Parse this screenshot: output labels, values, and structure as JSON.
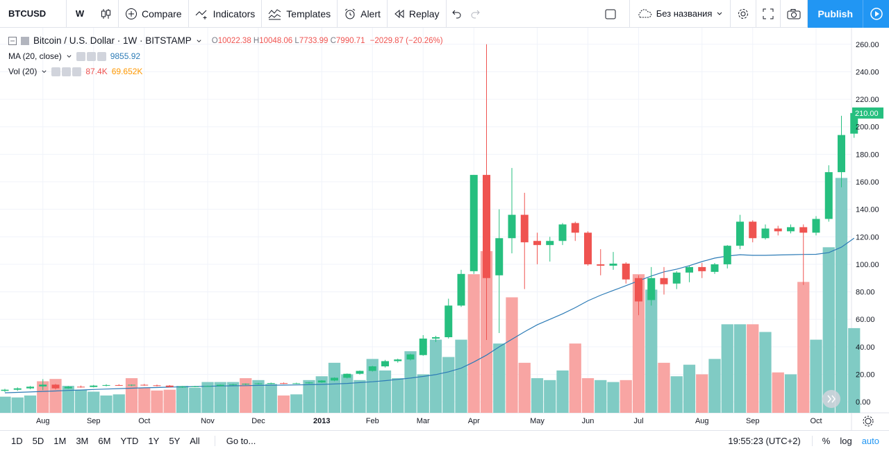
{
  "toolbar": {
    "symbol": "BTCUSD",
    "interval": "W",
    "compare": "Compare",
    "indicators": "Indicators",
    "templates": "Templates",
    "alert": "Alert",
    "replay": "Replay",
    "layout_name": "Без названия",
    "publish": "Publish"
  },
  "legend": {
    "title": "Bitcoin / U.S. Dollar · 1W · BITSTAMP",
    "o_key": "O",
    "o_val": "10022.38",
    "h_key": "H",
    "h_val": "10048.06",
    "l_key": "L",
    "l_val": "7733.99",
    "c_key": "C",
    "c_val": "7990.71",
    "change": "−2029.87 (−20.26%)",
    "ma_label": "MA (20, close)",
    "ma_value": "9855.92",
    "vol_label": "Vol (20)",
    "vol_value1": "87.4K",
    "vol_value2": "69.652K"
  },
  "bottombar": {
    "ranges": [
      "1D",
      "5D",
      "1M",
      "3M",
      "6M",
      "YTD",
      "1Y",
      "5Y",
      "All"
    ],
    "goto": "Go to...",
    "clock": "19:55:23 (UTC+2)",
    "percent": "%",
    "log": "log",
    "auto": "auto"
  },
  "colors": {
    "up": "#26a69a",
    "up_candle": "#26bf7f",
    "down": "#ef5350",
    "ma": "#2c7bb6",
    "vol_up": "#80cbc4",
    "vol_down": "#f8a5a3",
    "accent": "#2196f3"
  },
  "chart_data": {
    "type": "candlestick",
    "yticks": [
      0,
      20,
      40,
      60,
      80,
      100,
      120,
      140,
      160,
      180,
      200,
      220,
      240,
      260
    ],
    "ylim": [
      -8,
      272
    ],
    "last_price_label": "210.00",
    "last_price": 210,
    "x_labels": [
      {
        "label": "Aug",
        "week": 3
      },
      {
        "label": "Sep",
        "week": 7
      },
      {
        "label": "Oct",
        "week": 11
      },
      {
        "label": "Nov",
        "week": 16
      },
      {
        "label": "Dec",
        "week": 20
      },
      {
        "label": "2013",
        "week": 25
      },
      {
        "label": "Feb",
        "week": 29
      },
      {
        "label": "Mar",
        "week": 33
      },
      {
        "label": "Apr",
        "week": 37
      },
      {
        "label": "May",
        "week": 42
      },
      {
        "label": "Jun",
        "week": 46
      },
      {
        "label": "Jul",
        "week": 50
      },
      {
        "label": "Aug",
        "week": 55
      },
      {
        "label": "Sep",
        "week": 59
      },
      {
        "label": "Oct",
        "week": 64
      }
    ],
    "candles": [
      {
        "o": 8.0,
        "h": 9.5,
        "l": 7.2,
        "c": 8.8
      },
      {
        "o": 8.8,
        "h": 10.5,
        "l": 8.0,
        "c": 9.8
      },
      {
        "o": 9.8,
        "h": 11.5,
        "l": 9.2,
        "c": 11.0
      },
      {
        "o": 11.2,
        "h": 16.5,
        "l": 8.5,
        "c": 12.5
      },
      {
        "o": 12.5,
        "h": 13.0,
        "l": 9.0,
        "c": 9.8
      },
      {
        "o": 9.8,
        "h": 11.5,
        "l": 9.5,
        "c": 11.0
      },
      {
        "o": 11.0,
        "h": 11.8,
        "l": 10.3,
        "c": 10.8
      },
      {
        "o": 10.8,
        "h": 12.3,
        "l": 10.5,
        "c": 11.8
      },
      {
        "o": 11.8,
        "h": 12.8,
        "l": 11.3,
        "c": 12.2
      },
      {
        "o": 12.2,
        "h": 12.8,
        "l": 11.6,
        "c": 12.0
      },
      {
        "o": 12.0,
        "h": 12.6,
        "l": 11.5,
        "c": 12.4
      },
      {
        "o": 12.4,
        "h": 13.0,
        "l": 11.7,
        "c": 12.0
      },
      {
        "o": 12.0,
        "h": 12.5,
        "l": 11.2,
        "c": 11.8
      },
      {
        "o": 11.8,
        "h": 12.2,
        "l": 10.5,
        "c": 10.8
      },
      {
        "o": 10.8,
        "h": 11.4,
        "l": 10.2,
        "c": 11.0
      },
      {
        "o": 11.0,
        "h": 11.6,
        "l": 10.6,
        "c": 11.2
      },
      {
        "o": 11.2,
        "h": 11.8,
        "l": 10.9,
        "c": 11.5
      },
      {
        "o": 11.5,
        "h": 12.6,
        "l": 11.2,
        "c": 12.4
      },
      {
        "o": 12.4,
        "h": 13.0,
        "l": 11.9,
        "c": 12.6
      },
      {
        "o": 12.6,
        "h": 13.4,
        "l": 12.2,
        "c": 13.2
      },
      {
        "o": 13.2,
        "h": 13.8,
        "l": 12.6,
        "c": 13.4
      },
      {
        "o": 13.4,
        "h": 14.0,
        "l": 12.9,
        "c": 13.6
      },
      {
        "o": 13.6,
        "h": 14.1,
        "l": 13.0,
        "c": 13.3
      },
      {
        "o": 13.3,
        "h": 13.9,
        "l": 12.9,
        "c": 13.5
      },
      {
        "o": 13.5,
        "h": 14.4,
        "l": 13.2,
        "c": 14.1
      },
      {
        "o": 14.1,
        "h": 15.8,
        "l": 13.8,
        "c": 15.5
      },
      {
        "o": 15.5,
        "h": 17.8,
        "l": 15.0,
        "c": 17.5
      },
      {
        "o": 17.5,
        "h": 20.6,
        "l": 17.0,
        "c": 20.4
      },
      {
        "o": 20.4,
        "h": 22.8,
        "l": 19.8,
        "c": 22.5
      },
      {
        "o": 22.5,
        "h": 26.2,
        "l": 22.0,
        "c": 25.8
      },
      {
        "o": 25.8,
        "h": 30.5,
        "l": 25.0,
        "c": 29.6
      },
      {
        "o": 29.6,
        "h": 31.4,
        "l": 28.5,
        "c": 30.8
      },
      {
        "o": 30.8,
        "h": 35.0,
        "l": 30.1,
        "c": 34.5
      },
      {
        "o": 34.0,
        "h": 48.5,
        "l": 33.5,
        "c": 46.0
      },
      {
        "o": 46.0,
        "h": 48.0,
        "l": 43.5,
        "c": 47.0
      },
      {
        "o": 47.0,
        "h": 75.0,
        "l": 46.0,
        "c": 70.0
      },
      {
        "o": 70.0,
        "h": 96.0,
        "l": 69.0,
        "c": 93.0
      },
      {
        "o": 95.0,
        "h": 165.0,
        "l": 93.0,
        "c": 165.0
      },
      {
        "o": 165.0,
        "h": 260.0,
        "l": 45.0,
        "c": 90.0
      },
      {
        "o": 92.0,
        "h": 140.0,
        "l": 50.0,
        "c": 119.0
      },
      {
        "o": 119.0,
        "h": 170.0,
        "l": 108.0,
        "c": 136.0
      },
      {
        "o": 136.0,
        "h": 152.0,
        "l": 82.0,
        "c": 116.0
      },
      {
        "o": 117.0,
        "h": 123.0,
        "l": 100.0,
        "c": 114.0
      },
      {
        "o": 114.0,
        "h": 120.0,
        "l": 102.0,
        "c": 117.0
      },
      {
        "o": 117.0,
        "h": 130.0,
        "l": 114.0,
        "c": 129.0
      },
      {
        "o": 130.0,
        "h": 131.0,
        "l": 117.0,
        "c": 123.0
      },
      {
        "o": 123.0,
        "h": 124.0,
        "l": 99.0,
        "c": 100.0
      },
      {
        "o": 100.0,
        "h": 111.0,
        "l": 92.0,
        "c": 99.0
      },
      {
        "o": 99.0,
        "h": 109.0,
        "l": 96.0,
        "c": 100.5
      },
      {
        "o": 100.5,
        "h": 101.5,
        "l": 86.0,
        "c": 89.0
      },
      {
        "o": 90.0,
        "h": 92.0,
        "l": 63.0,
        "c": 73.0
      },
      {
        "o": 74.0,
        "h": 98.0,
        "l": 70.0,
        "c": 90.0
      },
      {
        "o": 90.0,
        "h": 98.0,
        "l": 78.0,
        "c": 85.5
      },
      {
        "o": 86.0,
        "h": 95.0,
        "l": 82.0,
        "c": 94.0
      },
      {
        "o": 94.0,
        "h": 99.0,
        "l": 87.0,
        "c": 98.0
      },
      {
        "o": 98.0,
        "h": 101.0,
        "l": 90.0,
        "c": 95.0
      },
      {
        "o": 94.5,
        "h": 101.0,
        "l": 93.0,
        "c": 100.0
      },
      {
        "o": 100.0,
        "h": 114.0,
        "l": 97.0,
        "c": 113.5
      },
      {
        "o": 113.5,
        "h": 136.0,
        "l": 111.0,
        "c": 131.0
      },
      {
        "o": 131.0,
        "h": 132.0,
        "l": 116.0,
        "c": 119.0
      },
      {
        "o": 119.0,
        "h": 129.0,
        "l": 118.0,
        "c": 126.0
      },
      {
        "o": 126.0,
        "h": 128.0,
        "l": 121.0,
        "c": 124.0
      },
      {
        "o": 124.0,
        "h": 129.0,
        "l": 122.5,
        "c": 127.0
      },
      {
        "o": 127.0,
        "h": 129.0,
        "l": 85.0,
        "c": 123.0
      },
      {
        "o": 123.0,
        "h": 135.0,
        "l": 121.0,
        "c": 133.0
      },
      {
        "o": 133.0,
        "h": 172.0,
        "l": 131.0,
        "c": 167.0
      },
      {
        "o": 167.0,
        "h": 208.0,
        "l": 156.0,
        "c": 194.0
      },
      {
        "o": 195.0,
        "h": 210.0,
        "l": 192.0,
        "c": 210.0
      }
    ],
    "volumes": [
      4.2,
      4.0,
      4.5,
      8.2,
      8.8,
      7.0,
      6.0,
      5.5,
      4.5,
      4.8,
      9.0,
      6.5,
      5.8,
      6.0,
      7.0,
      6.5,
      8.0,
      8.0,
      8.0,
      9.0,
      8.5,
      7.5,
      4.5,
      4.8,
      8.5,
      9.5,
      13.0,
      10.0,
      8.5,
      14.0,
      11.0,
      9.0,
      16.0,
      10.0,
      19.0,
      14.5,
      19.0,
      36.0,
      42.0,
      18.0,
      30.0,
      13.0,
      9.0,
      8.5,
      11.0,
      18.0,
      9.0,
      8.5,
      8.0,
      8.5,
      36.0,
      32.0,
      13.0,
      9.5,
      12.5,
      10.0,
      14.0,
      23.0,
      23.0,
      23.0,
      21.0,
      10.5,
      10.0,
      34.0,
      19.0,
      43.0,
      61.0,
      22.0
    ],
    "volume_down_index": [
      3,
      4,
      10,
      11,
      12,
      13,
      19,
      22,
      37,
      38,
      40,
      41,
      45,
      46,
      49,
      50,
      52,
      55,
      59,
      61,
      63
    ],
    "volume_max_scale": 100,
    "ma_note": "",
    "ma": [
      6.6,
      6.9,
      7.2,
      7.6,
      7.9,
      8.3,
      8.6,
      9.0,
      9.3,
      9.6,
      9.9,
      10.2,
      10.4,
      10.7,
      10.9,
      11.1,
      11.3,
      11.5,
      11.7,
      11.8,
      12.0,
      12.1,
      12.2,
      12.3,
      12.5,
      12.7,
      13.0,
      13.4,
      14.0,
      14.6,
      15.4,
      16.3,
      17.3,
      18.5,
      19.8,
      21.8,
      24.5,
      29.0,
      34.0,
      40.0,
      45.5,
      51.0,
      56.0,
      60.0,
      64.0,
      68.5,
      73.5,
      77.5,
      81.0,
      84.5,
      88.0,
      91.5,
      94.5,
      96.5,
      99.0,
      102.0,
      104.5,
      106.0,
      107.0,
      106.5,
      106.5,
      106.8,
      107.0,
      107.2,
      107.3,
      108.5,
      112.5,
      119.0
    ]
  }
}
